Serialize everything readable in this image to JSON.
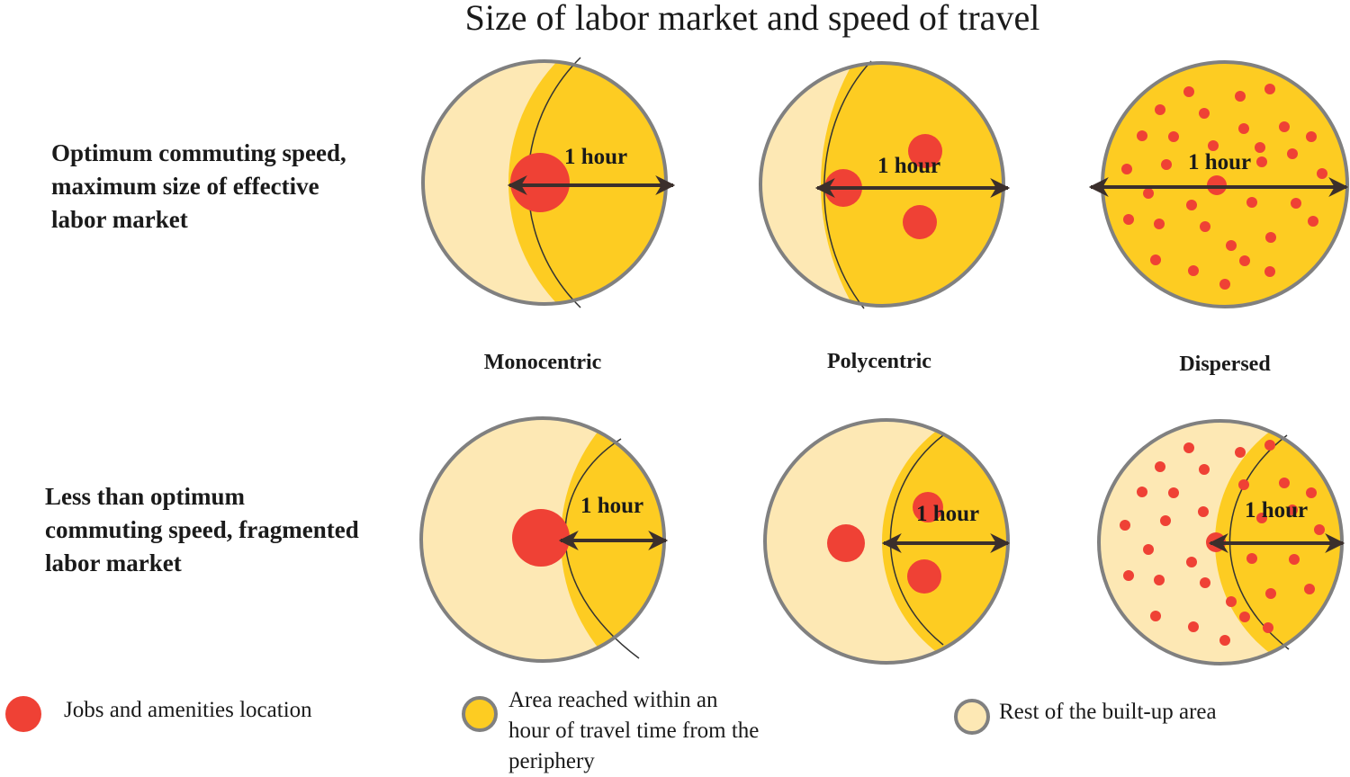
{
  "title": "Size of labor market and speed of travel",
  "rows": [
    {
      "label_lines": [
        "Optimum commuting speed,",
        "maximum size of effective",
        "labor market"
      ]
    },
    {
      "label_lines": [
        "Less than optimum",
        "commuting speed, fragmented",
        "labor market"
      ]
    }
  ],
  "columns": [
    "Monocentric",
    "Polycentric",
    "Dispersed"
  ],
  "arrow_label": "1 hour",
  "legend": [
    {
      "text_lines": [
        "Jobs and amenities location"
      ],
      "color": "#ef4135"
    },
    {
      "text_lines": [
        "Area reached within an",
        "hour of travel time from the",
        "periphery"
      ],
      "color": "#fdcc22"
    },
    {
      "text_lines": [
        "Rest of the built-up area"
      ],
      "color": "#fde8b4"
    }
  ],
  "colors": {
    "jobs": "#ef4135",
    "reached": "#fdcc22",
    "rest": "#fde8b4",
    "outline": "#808080"
  }
}
